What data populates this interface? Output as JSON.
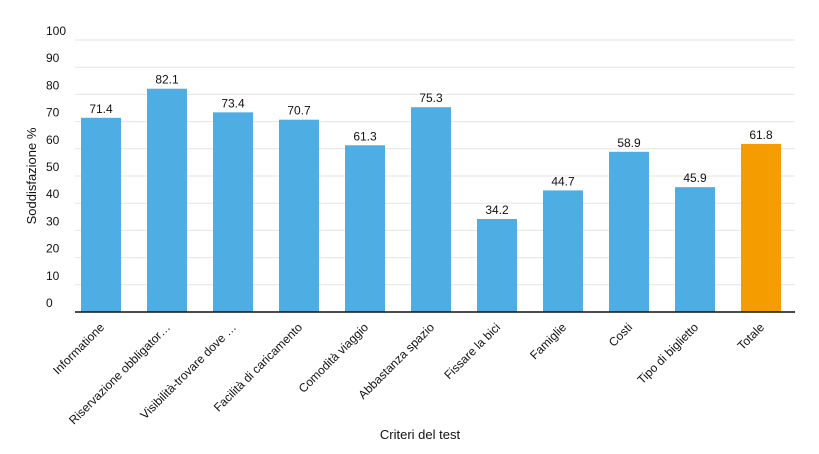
{
  "chart_data": {
    "type": "bar",
    "title": "",
    "xlabel": "Criteri del test",
    "ylabel": "Soddisfazione %",
    "ylim": [
      0,
      100
    ],
    "yticks": [
      0,
      10,
      20,
      30,
      40,
      50,
      60,
      70,
      80,
      90,
      100
    ],
    "grid": true,
    "categories": [
      "Informatione",
      "Riservazione obbligator…",
      "Visibilità-trovare dove …",
      "Facilità di caricamento",
      "Comodità viaggio",
      "Abbastanza spazio",
      "Fissare la bici",
      "Famiglie",
      "Costi",
      "Tipo di biglietto",
      "Totale"
    ],
    "values": [
      71.4,
      82.1,
      73.4,
      70.7,
      61.3,
      75.3,
      34.2,
      44.7,
      58.9,
      45.9,
      61.8
    ],
    "value_labels": [
      "71.4",
      "82.1",
      "73.4",
      "70.7",
      "61.3",
      "75.3",
      "34.2",
      "44.7",
      "58.9",
      "45.9",
      "61.8"
    ],
    "colors": [
      "#4eaee3",
      "#4eaee3",
      "#4eaee3",
      "#4eaee3",
      "#4eaee3",
      "#4eaee3",
      "#4eaee3",
      "#4eaee3",
      "#4eaee3",
      "#4eaee3",
      "#f59c00"
    ]
  }
}
